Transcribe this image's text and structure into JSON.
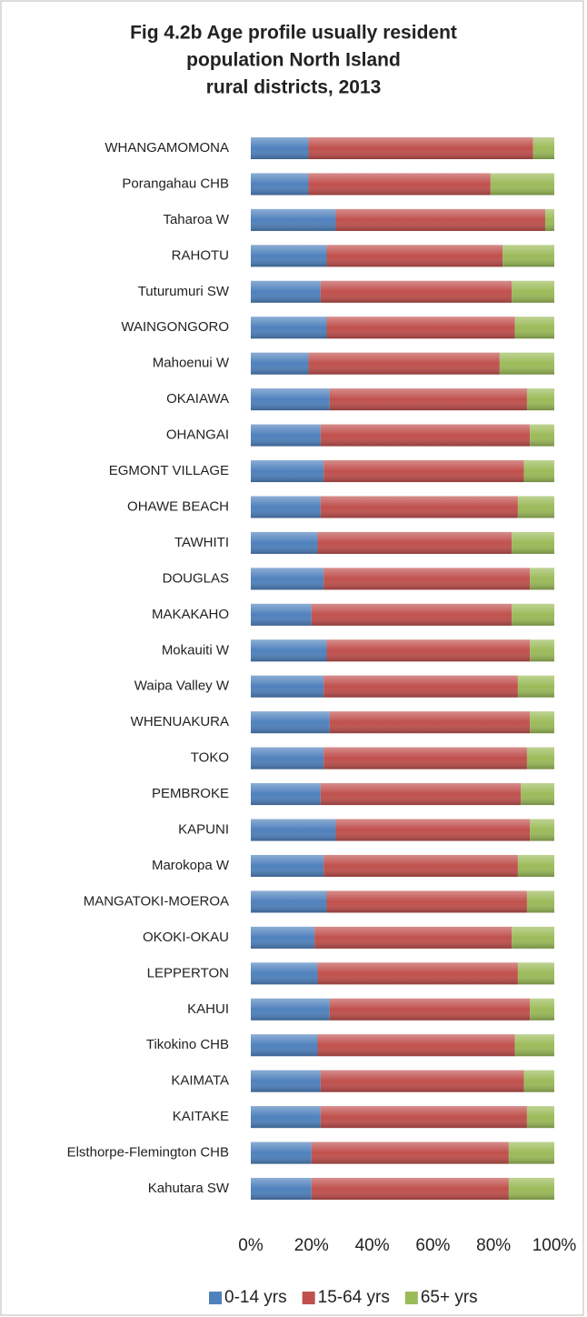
{
  "chart_data": {
    "type": "stacked_bar_horizontal",
    "title": [
      "Fig 4.2b Age profile usually resident",
      "population North Island",
      "rural districts, 2013"
    ],
    "categories": [
      "WHANGAMOMONA",
      "Porangahau CHB",
      "Taharoa W",
      "RAHOTU",
      "Tuturumuri SW",
      "WAINGONGORO",
      "Mahoenui W",
      "OKAIAWA",
      "OHANGAI",
      "EGMONT VILLAGE",
      "OHAWE BEACH",
      "TAWHITI",
      "DOUGLAS",
      "MAKAKAHO",
      "Mokauiti W",
      "Waipa Valley W",
      "WHENUAKURA",
      "TOKO",
      "PEMBROKE",
      "KAPUNI",
      "Marokopa W",
      "MANGATOKI-MOEROA",
      "OKOKI-OKAU",
      "LEPPERTON",
      "KAHUI",
      "Tikokino CHB",
      "KAIMATA",
      "KAITAKE",
      "Elsthorpe-Flemington CHB",
      "Kahutara SW"
    ],
    "series": [
      {
        "name": "0-14 yrs",
        "color": "#4f81bd",
        "values": [
          19,
          19,
          28,
          25,
          23,
          25,
          19,
          26,
          23,
          24,
          23,
          22,
          24,
          20,
          25,
          24,
          26,
          24,
          23,
          28,
          24,
          25,
          21,
          22,
          26,
          22,
          23,
          23,
          20,
          20
        ]
      },
      {
        "name": "15-64 yrs",
        "color": "#c0504d",
        "values": [
          74,
          60,
          69,
          58,
          63,
          62,
          63,
          65,
          69,
          66,
          65,
          64,
          68,
          66,
          67,
          64,
          66,
          67,
          66,
          64,
          64,
          66,
          65,
          66,
          66,
          65,
          67,
          68,
          65,
          65
        ]
      },
      {
        "name": "65+ yrs",
        "color": "#9bbb59",
        "values": [
          7,
          21,
          3,
          17,
          14,
          13,
          18,
          9,
          8,
          10,
          12,
          14,
          8,
          14,
          8,
          12,
          8,
          9,
          11,
          8,
          12,
          9,
          14,
          12,
          8,
          13,
          10,
          9,
          15,
          15
        ]
      }
    ],
    "xlim": [
      0,
      100
    ],
    "xticks": [
      {
        "value": 0,
        "label": "0%"
      },
      {
        "value": 20,
        "label": "20%"
      },
      {
        "value": 40,
        "label": "40%"
      },
      {
        "value": 60,
        "label": "60%"
      },
      {
        "value": 80,
        "label": "80%"
      },
      {
        "value": 100,
        "label": "100%"
      }
    ],
    "legend": "bottom"
  }
}
